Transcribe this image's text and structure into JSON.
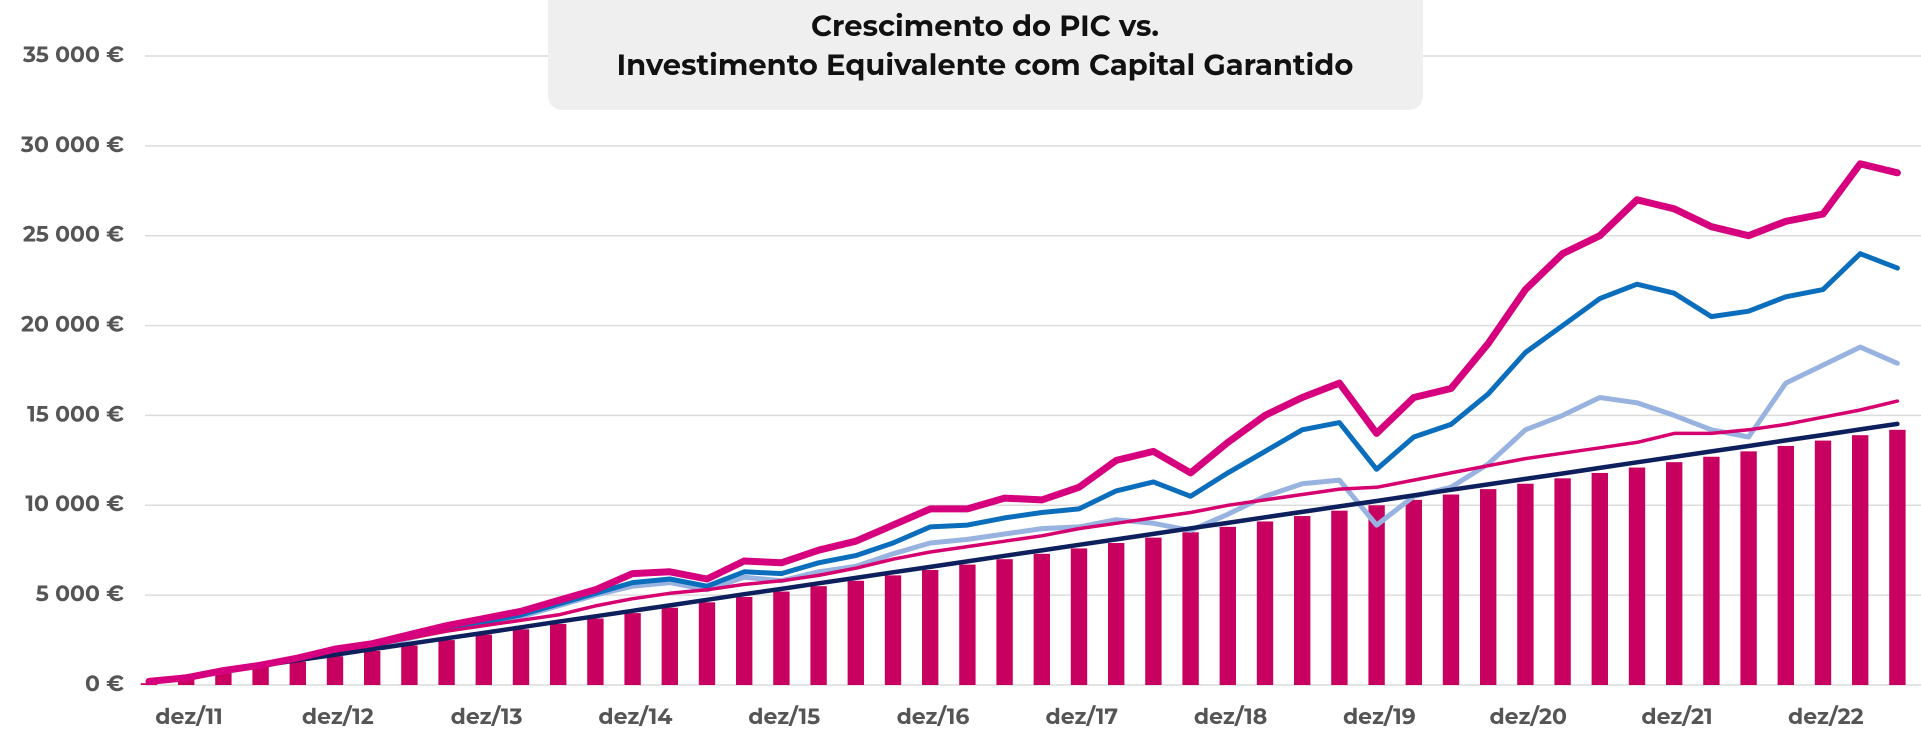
{
  "chart_data": {
    "type": "line",
    "title": [
      "Crescimento do PIC vs.",
      "Investimento Equivalente com Capital Garantido"
    ],
    "categories": [
      "dez/11",
      null,
      null,
      null,
      "dez/12",
      null,
      null,
      null,
      "dez/13",
      null,
      null,
      null,
      "dez/14",
      null,
      null,
      null,
      "dez/15",
      null,
      null,
      null,
      "dez/16",
      null,
      null,
      null,
      "dez/17",
      null,
      null,
      null,
      "dez/18",
      null,
      null,
      null,
      "dez/19",
      null,
      null,
      null,
      "dez/20",
      null,
      null,
      null,
      "dez/21",
      null,
      null,
      null,
      "dez/22",
      null,
      null,
      null
    ],
    "ylim": [
      0,
      35000
    ],
    "yticks": [
      {
        "value": 0,
        "label": "0 €"
      },
      {
        "value": 5000,
        "label": "5 000 €"
      },
      {
        "value": 10000,
        "label": "10 000 €"
      },
      {
        "value": 15000,
        "label": "15 000 €"
      },
      {
        "value": 20000,
        "label": "20 000 €"
      },
      {
        "value": 25000,
        "label": "25 000 €"
      },
      {
        "value": 30000,
        "label": "30 000 €"
      },
      {
        "value": 35000,
        "label": "35 000 €"
      }
    ],
    "grid": true,
    "series": [
      {
        "type": "bar",
        "color": "#c8005f",
        "values": [
          100,
          400,
          700,
          1000,
          1300,
          1600,
          1900,
          2200,
          2500,
          2800,
          3100,
          3400,
          3700,
          4000,
          4300,
          4600,
          4900,
          5200,
          5500,
          5800,
          6100,
          6400,
          6700,
          7000,
          7300,
          7600,
          7900,
          8200,
          8500,
          8800,
          9100,
          9400,
          9700,
          10000,
          10300,
          10600,
          10900,
          11200,
          11500,
          11800,
          12100,
          12400,
          12700,
          13000,
          13300,
          13600,
          13900,
          14200
        ]
      },
      {
        "color": "#98b3e0",
        "width": 5,
        "values": [
          200,
          400,
          800,
          1100,
          1500,
          1800,
          2100,
          2600,
          3100,
          3400,
          3800,
          4400,
          5000,
          5500,
          5700,
          5300,
          6000,
          5800,
          6300,
          6600,
          7300,
          7900,
          8100,
          8400,
          8700,
          8800,
          9200,
          9000,
          8600,
          9500,
          10500,
          11200,
          11400,
          8900,
          10500,
          11000,
          12300,
          14200,
          15000,
          16000,
          15700,
          15000,
          14200,
          13800,
          16800,
          17800,
          18800,
          17900
        ]
      },
      {
        "color": "#0a6ebd",
        "width": 5,
        "values": [
          200,
          400,
          800,
          1100,
          1500,
          1900,
          2200,
          2700,
          3200,
          3500,
          3900,
          4500,
          5100,
          5700,
          5900,
          5500,
          6300,
          6200,
          6800,
          7200,
          7900,
          8800,
          8900,
          9300,
          9600,
          9800,
          10800,
          11300,
          10500,
          11800,
          13000,
          14200,
          14600,
          12000,
          13800,
          14500,
          16200,
          18500,
          20000,
          21500,
          22300,
          21800,
          20500,
          20800,
          21600,
          22000,
          24000,
          23200
        ]
      },
      {
        "color": "#d6006f",
        "width": 3.5,
        "values": [
          200,
          500,
          800,
          1100,
          1500,
          1800,
          2200,
          2600,
          3000,
          3300,
          3600,
          3900,
          4400,
          4800,
          5100,
          5300,
          5600,
          5800,
          6100,
          6500,
          7000,
          7400,
          7700,
          8000,
          8300,
          8700,
          9000,
          9300,
          9600,
          10000,
          10300,
          10600,
          10900,
          11000,
          11400,
          11800,
          12200,
          12600,
          12900,
          13200,
          13500,
          14000,
          14000,
          14200,
          14500,
          14900,
          15300,
          15800
        ]
      },
      {
        "color": "#0d1f5c",
        "width": 4.5,
        "values": [
          150,
          460,
          760,
          1070,
          1380,
          1680,
          1990,
          2290,
          2600,
          2900,
          3210,
          3520,
          3820,
          4130,
          4430,
          4740,
          5050,
          5350,
          5660,
          5960,
          6270,
          6570,
          6880,
          7190,
          7490,
          7800,
          8100,
          8410,
          8720,
          9020,
          9330,
          9630,
          9940,
          10240,
          10550,
          10860,
          11160,
          11470,
          11770,
          12080,
          12390,
          12690,
          13000,
          13300,
          13610,
          13910,
          14220,
          14530
        ]
      },
      {
        "color": "#d6007e",
        "width": 7,
        "values": [
          200,
          400,
          800,
          1100,
          1500,
          2000,
          2300,
          2800,
          3300,
          3700,
          4100,
          4700,
          5300,
          6200,
          6300,
          5900,
          6900,
          6800,
          7500,
          8000,
          8900,
          9800,
          9800,
          10400,
          10300,
          11000,
          12500,
          13000,
          11800,
          13500,
          15000,
          16000,
          16800,
          14000,
          16000,
          16500,
          19000,
          22000,
          24000,
          25000,
          27000,
          26500,
          25500,
          25000,
          25800,
          26200,
          29000,
          28500
        ]
      }
    ]
  }
}
